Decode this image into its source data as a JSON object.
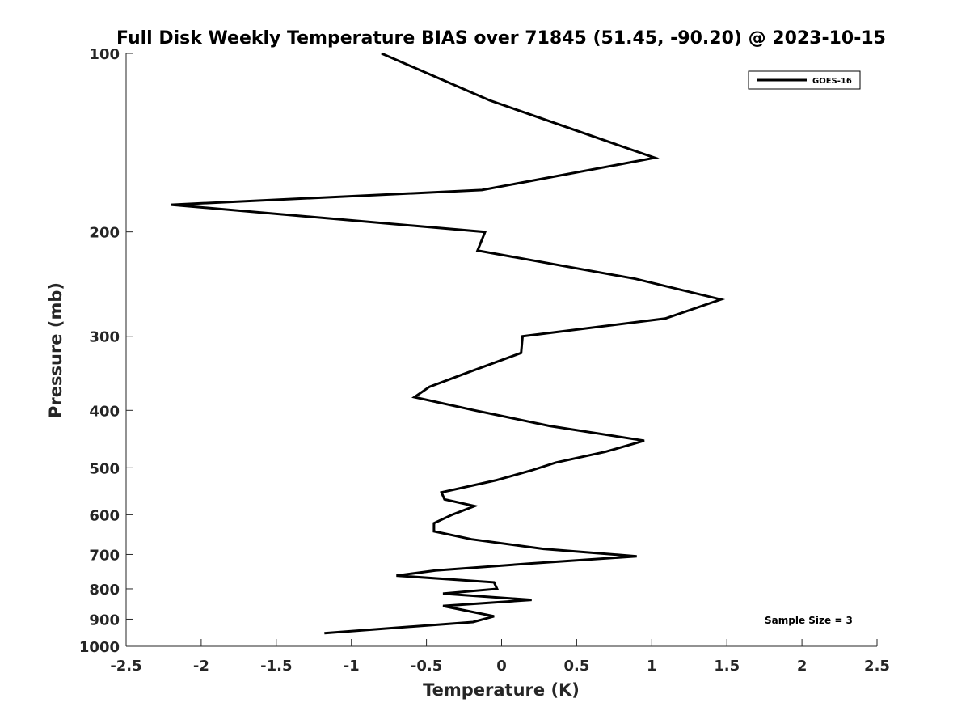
{
  "chart_data": {
    "type": "line",
    "title": "Full Disk Weekly Temperature BIAS over 71845 (51.45, -90.20) @ 2023-10-15",
    "xlabel": "Temperature (K)",
    "ylabel": "Pressure (mb)",
    "xlim": [
      -2.5,
      2.5
    ],
    "ylim": [
      100,
      1000
    ],
    "y_scale": "log",
    "y_reversed": true,
    "xticks": [
      -2.5,
      -2,
      -1.5,
      -1,
      -0.5,
      0,
      0.5,
      1,
      1.5,
      2,
      2.5
    ],
    "xtick_labels": [
      "-2.5",
      "-2",
      "-1.5",
      "-1",
      "-0.5",
      "0",
      "0.5",
      "1",
      "1.5",
      "2",
      "2.5"
    ],
    "yticks": [
      100,
      200,
      300,
      400,
      500,
      600,
      700,
      800,
      900,
      1000
    ],
    "ytick_labels": [
      "100",
      "200",
      "300",
      "400",
      "500",
      "600",
      "700",
      "800",
      "900",
      "1000"
    ],
    "grid": false,
    "legend_position": "top-right",
    "colors": {
      "series": "#000000",
      "axes": "#262626"
    },
    "series": [
      {
        "name": "GOES-16",
        "points": [
          {
            "x": -0.8,
            "p": 100
          },
          {
            "x": -0.08,
            "p": 120
          },
          {
            "x": 1.02,
            "p": 150
          },
          {
            "x": -0.13,
            "p": 170
          },
          {
            "x": -2.2,
            "p": 180
          },
          {
            "x": -0.11,
            "p": 200
          },
          {
            "x": -0.16,
            "p": 215
          },
          {
            "x": 0.89,
            "p": 240
          },
          {
            "x": 1.46,
            "p": 260
          },
          {
            "x": 1.09,
            "p": 280
          },
          {
            "x": 0.14,
            "p": 300
          },
          {
            "x": 0.13,
            "p": 320
          },
          {
            "x": -0.22,
            "p": 345
          },
          {
            "x": -0.48,
            "p": 365
          },
          {
            "x": -0.58,
            "p": 380
          },
          {
            "x": -0.18,
            "p": 400
          },
          {
            "x": 0.32,
            "p": 425
          },
          {
            "x": 0.95,
            "p": 450
          },
          {
            "x": 0.69,
            "p": 470
          },
          {
            "x": 0.36,
            "p": 490
          },
          {
            "x": 0.2,
            "p": 505
          },
          {
            "x": -0.04,
            "p": 525
          },
          {
            "x": -0.4,
            "p": 550
          },
          {
            "x": -0.38,
            "p": 565
          },
          {
            "x": -0.18,
            "p": 580
          },
          {
            "x": -0.33,
            "p": 600
          },
          {
            "x": -0.45,
            "p": 620
          },
          {
            "x": -0.45,
            "p": 640
          },
          {
            "x": -0.2,
            "p": 660
          },
          {
            "x": 0.28,
            "p": 685
          },
          {
            "x": 0.9,
            "p": 705
          },
          {
            "x": 0.19,
            "p": 725
          },
          {
            "x": -0.44,
            "p": 745
          },
          {
            "x": -0.7,
            "p": 760
          },
          {
            "x": -0.05,
            "p": 780
          },
          {
            "x": -0.03,
            "p": 800
          },
          {
            "x": -0.39,
            "p": 815
          },
          {
            "x": 0.2,
            "p": 835
          },
          {
            "x": -0.39,
            "p": 855
          },
          {
            "x": -0.05,
            "p": 890
          },
          {
            "x": -0.19,
            "p": 910
          },
          {
            "x": -1.18,
            "p": 950
          }
        ]
      }
    ],
    "annotation": "Sample Size = 3"
  }
}
